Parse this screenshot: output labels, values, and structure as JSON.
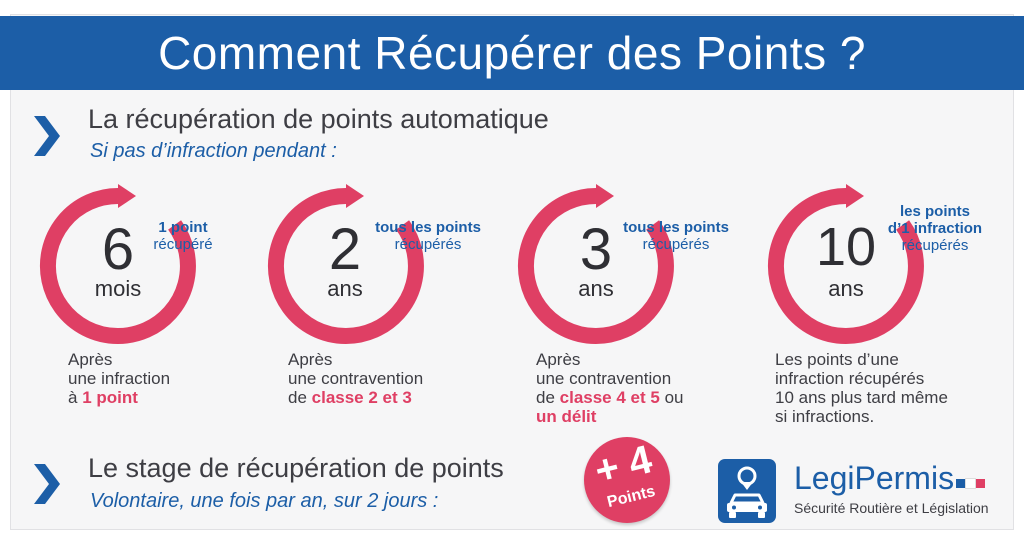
{
  "title": "Comment Récupérer des Points ?",
  "section1": {
    "title": "La récupération de points automatique",
    "subtitle": "Si pas d’infraction pendant :"
  },
  "items": [
    {
      "number": "6",
      "unit": "mois",
      "note": [
        "1 point",
        "récupéré"
      ],
      "desc": {
        "line1": "Après",
        "line2": "une infraction",
        "line3_prefix": "à ",
        "line3_highlight": "1 point"
      }
    },
    {
      "number": "2",
      "unit": "ans",
      "note": [
        "tous les points",
        "récupérés"
      ],
      "desc": {
        "line1": "Après",
        "line2": "une contravention",
        "line3_prefix": "de ",
        "line3_highlight": "classe 2 et 3"
      }
    },
    {
      "number": "3",
      "unit": "ans",
      "note": [
        "tous les points",
        "récupérés"
      ],
      "desc": {
        "line1": "Après",
        "line2": "une contravention",
        "line3_prefix": "de ",
        "line3_highlight": "classe 4 et 5",
        "line3_suffix": " ou",
        "line4_highlight": "un délit"
      }
    },
    {
      "number": "10",
      "unit": "ans",
      "note": [
        "les points",
        "d’1 infraction",
        "récupérés"
      ],
      "desc": {
        "line1": "Les points d’une",
        "line2": "infraction récupérés",
        "line3": "10 ans plus tard même",
        "line4": "si infractions."
      }
    }
  ],
  "section2": {
    "title": "Le stage de récupération de points",
    "subtitle": "Volontaire, une fois par an, sur 2 jours :"
  },
  "badge": {
    "number": "+ 4",
    "label": "Points"
  },
  "brand": {
    "name_part1": "Legi",
    "name_part2": "Permis",
    "tagline": "Sécurité Routière et Législation",
    "logo_icon": "car-pin-icon"
  },
  "colors": {
    "blue": "#1c5ea7",
    "pink": "#df3f64",
    "text": "#3e3e44",
    "flag": [
      "#1c5ea7",
      "#ffffff",
      "#df3f64"
    ]
  }
}
